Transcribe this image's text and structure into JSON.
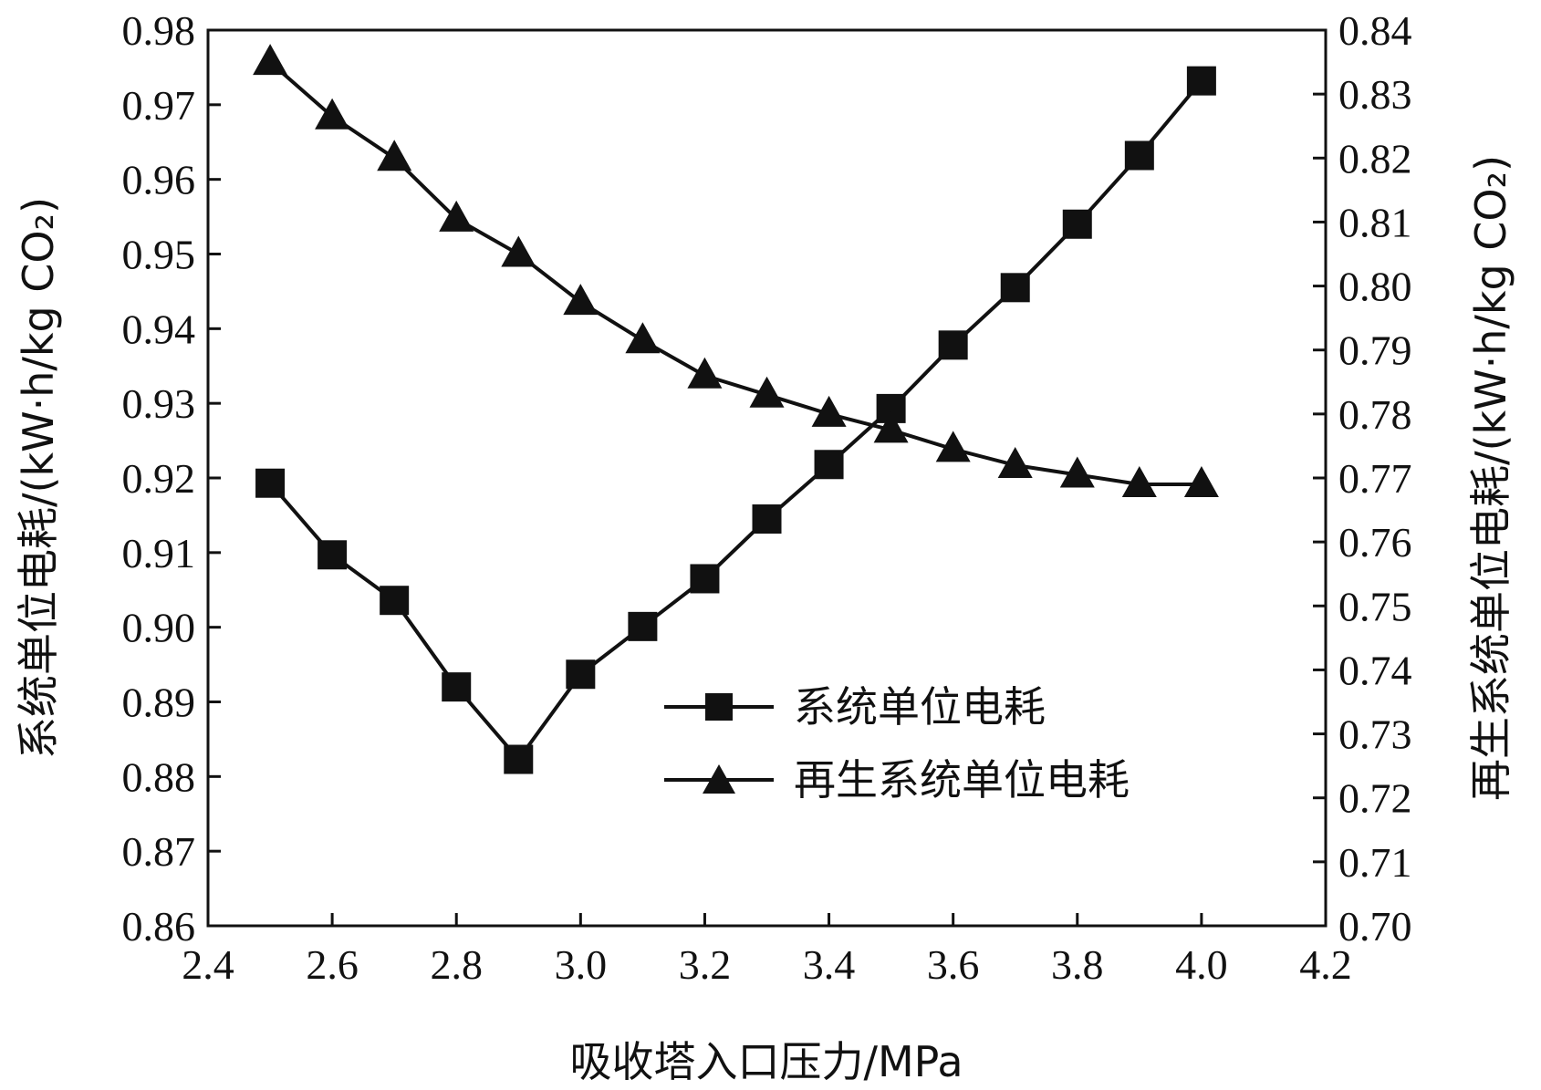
{
  "chart_data": {
    "type": "line",
    "xlabel": "吸收塔入口压力/MPa",
    "ylabel_left": "系统单位电耗/(kW·h/kg CO₂)",
    "ylabel_right": "再生系统单位电耗/(kW·h/kg CO₂)",
    "xlim": [
      2.4,
      4.2
    ],
    "xticks": [
      "2.4",
      "2.6",
      "2.8",
      "3.0",
      "3.2",
      "3.4",
      "3.6",
      "3.8",
      "4.0",
      "4.2"
    ],
    "ylim_left": [
      0.86,
      0.98
    ],
    "yticks_left": [
      "0.86",
      "0.87",
      "0.88",
      "0.89",
      "0.90",
      "0.91",
      "0.92",
      "0.93",
      "0.94",
      "0.95",
      "0.96",
      "0.97",
      "0.98"
    ],
    "ylim_right": [
      0.7,
      0.84
    ],
    "yticks_right": [
      "0.70",
      "0.71",
      "0.72",
      "0.73",
      "0.74",
      "0.75",
      "0.76",
      "0.77",
      "0.78",
      "0.79",
      "0.80",
      "0.81",
      "0.82",
      "0.83",
      "0.84"
    ],
    "grid": false,
    "legend_position": "center-right",
    "x": [
      2.5,
      2.6,
      2.7,
      2.8,
      2.9,
      3.0,
      3.1,
      3.2,
      3.3,
      3.4,
      3.5,
      3.6,
      3.7,
      3.8,
      3.9,
      4.0
    ],
    "series": [
      {
        "name": "系统单位电耗",
        "axis": "left",
        "marker": "square",
        "values": [
          0.9193,
          0.9097,
          0.9036,
          0.892,
          0.8823,
          0.8937,
          0.9001,
          0.9065,
          0.9145,
          0.9218,
          0.9293,
          0.9378,
          0.9455,
          0.954,
          0.9632,
          0.9732
        ]
      },
      {
        "name": "再生系统单位电耗",
        "axis": "right",
        "marker": "triangle",
        "values": [
          0.835,
          0.8265,
          0.82,
          0.8105,
          0.805,
          0.7975,
          0.7915,
          0.786,
          0.783,
          0.78,
          0.7775,
          0.7745,
          0.772,
          0.7705,
          0.769,
          0.769
        ]
      }
    ]
  }
}
